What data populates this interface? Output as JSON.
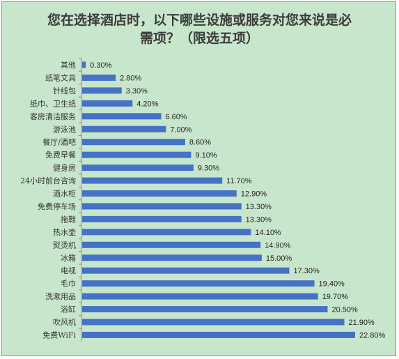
{
  "chart_data": {
    "type": "bar",
    "orientation": "horizontal",
    "title_lines": [
      "您在选择酒店时，以下哪些设施或服务对您来说是必",
      "需项？（限选五项）"
    ],
    "categories": [
      "其他",
      "纸笔文具",
      "针线包",
      "纸巾、卫生纸",
      "客房清洁服务",
      "游泳池",
      "餐厅/酒吧",
      "免费早餐",
      "健身房",
      "24小时前台咨询",
      "酒水柜",
      "免费停车场",
      "拖鞋",
      "热水壶",
      "熨烫机",
      "冰箱",
      "电视",
      "毛巾",
      "洗漱用品",
      "浴缸",
      "吹风机",
      "免费WiFi"
    ],
    "values": [
      0.3,
      2.8,
      3.3,
      4.2,
      6.6,
      7.0,
      8.6,
      9.1,
      9.3,
      11.7,
      12.9,
      13.3,
      13.3,
      14.1,
      14.9,
      15.0,
      17.3,
      19.4,
      19.7,
      20.5,
      21.9,
      22.8
    ],
    "value_labels": [
      "0.30%",
      "2.80%",
      "3.30%",
      "4.20%",
      "6.60%",
      "7.00%",
      "8.60%",
      "9.10%",
      "9.30%",
      "11.70%",
      "12.90%",
      "13.30%",
      "13.30%",
      "14.10%",
      "14.90%",
      "15.00%",
      "17.30%",
      "19.40%",
      "19.70%",
      "20.50%",
      "21.90%",
      "22.80%"
    ],
    "unit": "%",
    "xlim": [
      0,
      22.8
    ],
    "grid": false,
    "legend": "none",
    "bar_color": "#4472c4",
    "background_color": "#c8e6cc"
  }
}
